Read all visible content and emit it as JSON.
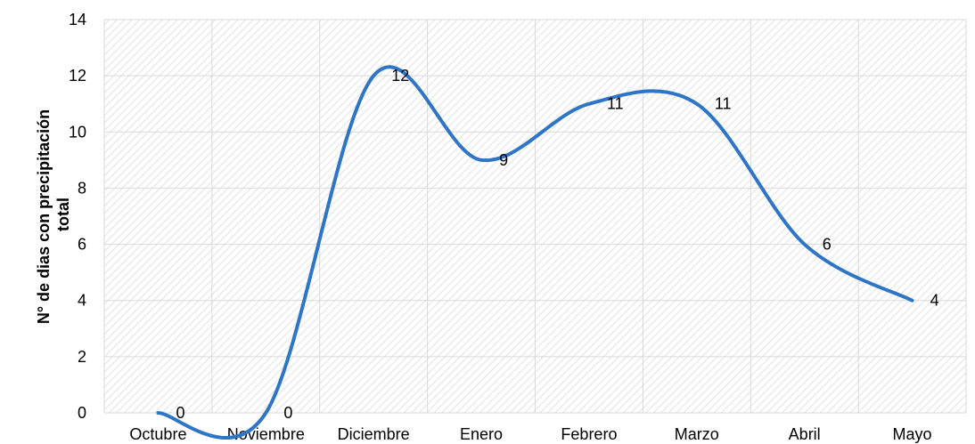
{
  "chart_data": {
    "type": "line",
    "smooth": true,
    "categories": [
      "Octubre",
      "Noviembre",
      "Diciembre",
      "Enero",
      "Febrero",
      "Marzo",
      "Abril",
      "Mayo"
    ],
    "values": [
      0,
      0,
      12,
      9,
      11,
      11,
      6,
      4
    ],
    "data_labels": [
      "0",
      "0",
      "12",
      "9",
      "11",
      "11",
      "6",
      "4"
    ],
    "ylabel_lines": [
      "N° de dias con precipitación",
      "total"
    ],
    "ylim": [
      0,
      14
    ],
    "yticks": [
      0,
      2,
      4,
      6,
      8,
      10,
      12,
      14
    ],
    "ytick_labels": [
      "0",
      "2",
      "4",
      "6",
      "8",
      "10",
      "12",
      "14"
    ],
    "grid": true,
    "plot_fill": "hatched",
    "line_color": "#2E75C8",
    "grid_color": "#d9d9d9",
    "hatch_color": "#e2e2e2"
  }
}
